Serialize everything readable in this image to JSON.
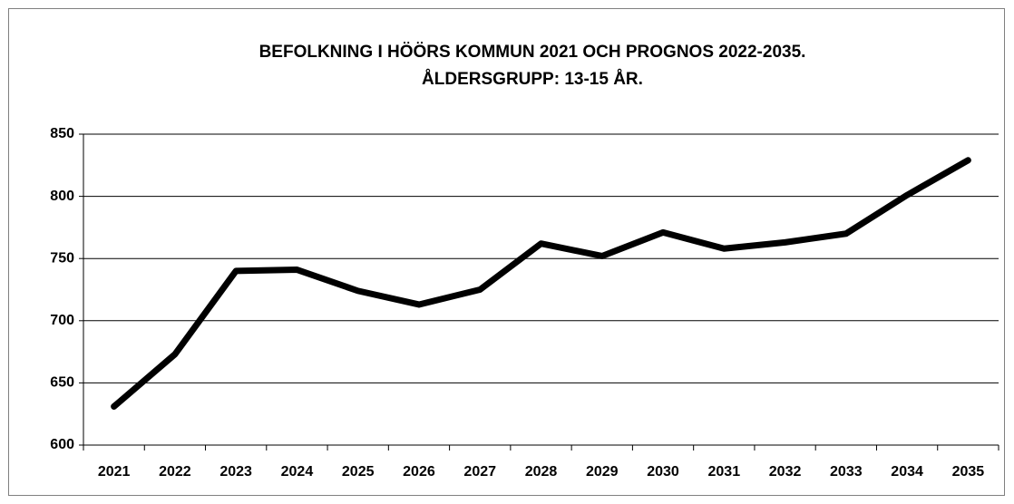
{
  "chart_data": {
    "type": "line",
    "title": [
      "BEFOLKNING I HÖÖRS KOMMUN 2021 OCH PROGNOS 2022-2035.",
      "ÅLDERSGRUPP: 13-15 ÅR."
    ],
    "categories": [
      "2021",
      "2022",
      "2023",
      "2024",
      "2025",
      "2026",
      "2027",
      "2028",
      "2029",
      "2030",
      "2031",
      "2032",
      "2033",
      "2034",
      "2035"
    ],
    "series": [
      {
        "color": "#000000",
        "values": [
          631,
          673,
          740,
          741,
          724,
          713,
          725,
          762,
          752,
          771,
          758,
          763,
          770,
          801,
          829
        ]
      }
    ],
    "ylim": [
      600,
      850
    ],
    "yticks": [
      600,
      650,
      700,
      750,
      800,
      850
    ],
    "grid": true
  }
}
